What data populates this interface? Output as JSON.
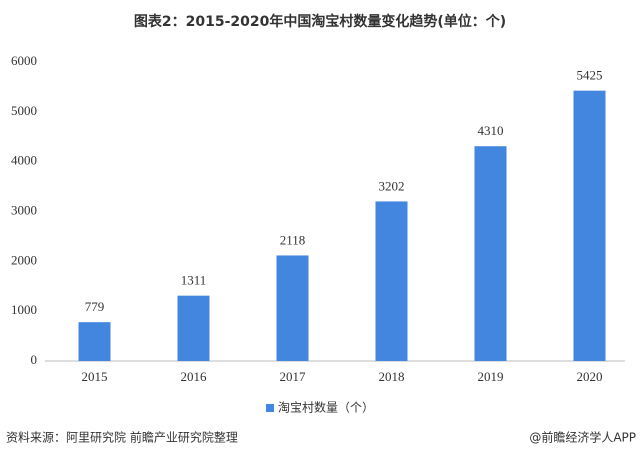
{
  "chart_data": {
    "type": "bar",
    "title": "图表2：2015-2020年中国淘宝村数量变化趋势(单位：个)",
    "categories": [
      "2015",
      "2016",
      "2017",
      "2018",
      "2019",
      "2020"
    ],
    "series": [
      {
        "name": "淘宝村数量（个）",
        "color": "#4286df",
        "values": [
          779,
          1311,
          2118,
          3202,
          4310,
          5425
        ]
      }
    ],
    "ylim": [
      0,
      6000
    ],
    "yticks": [
      0,
      1000,
      2000,
      3000,
      4000,
      5000,
      6000
    ],
    "grid": false,
    "legend": "bottom",
    "source": "资料来源：阿里研究院 前瞻产业研究院整理",
    "credit": "@前瞻经济学人APP"
  }
}
